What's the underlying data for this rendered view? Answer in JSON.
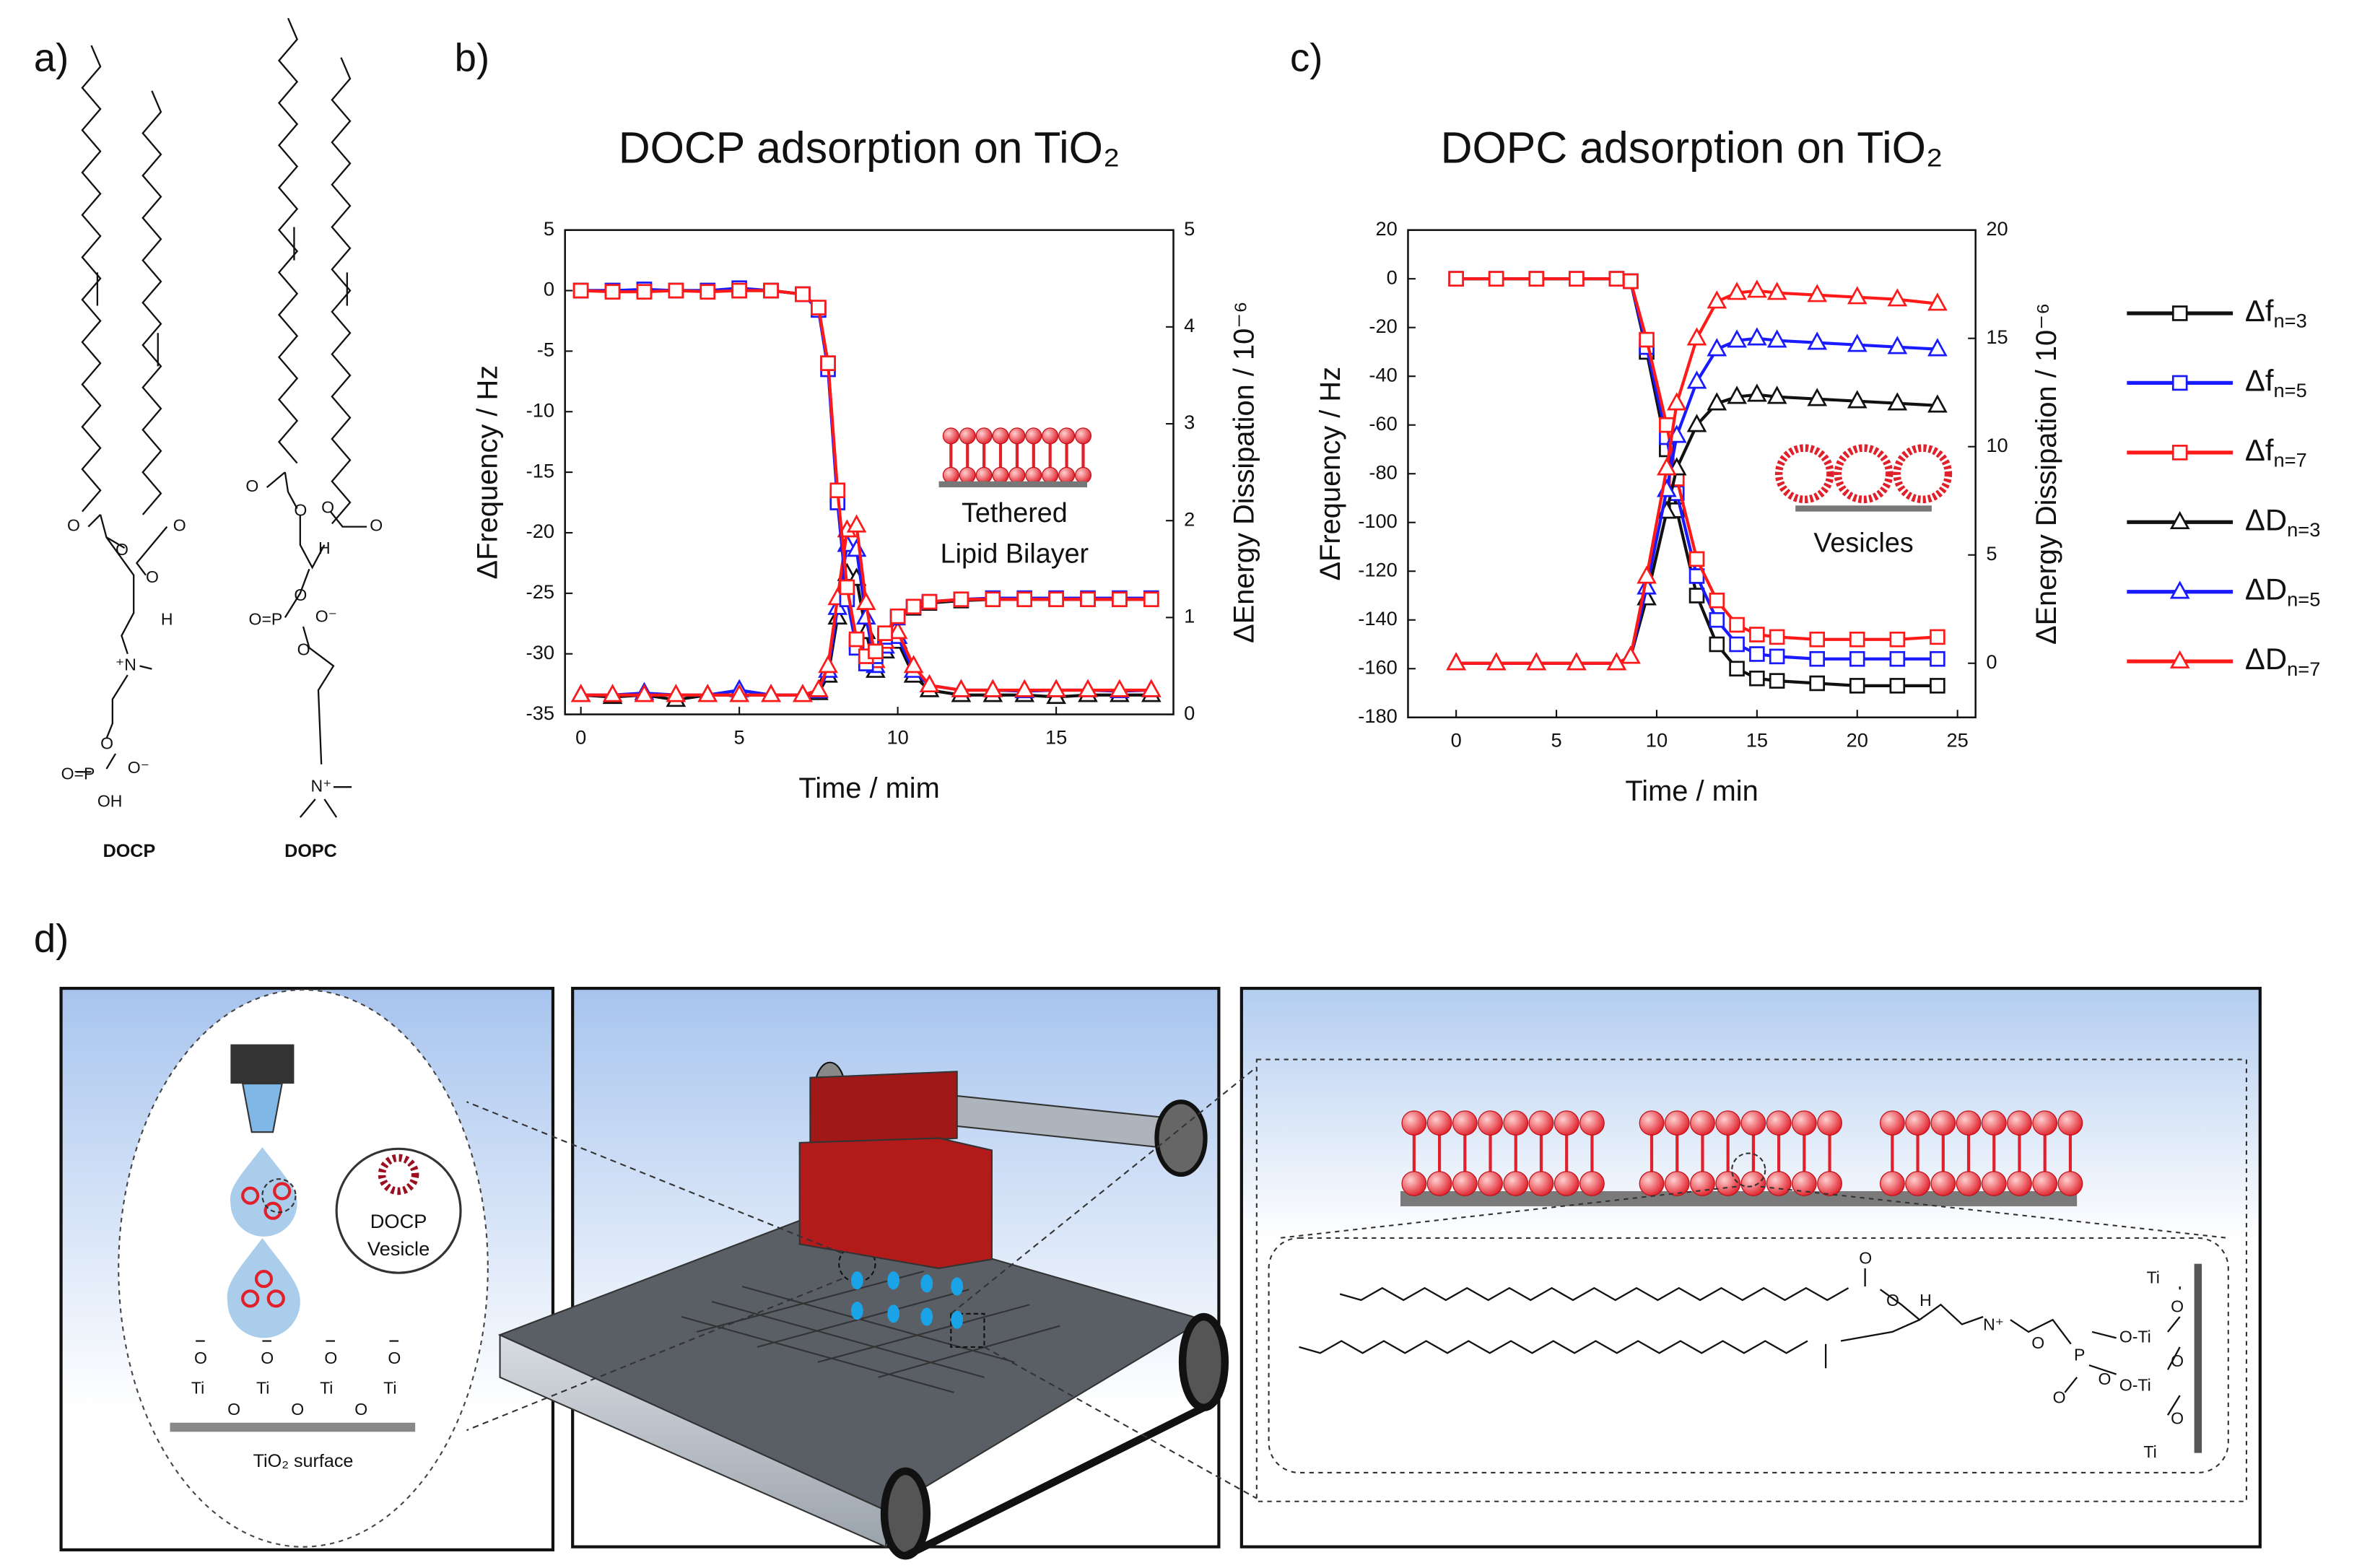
{
  "figure": {
    "panel_labels": [
      "a)",
      "b)",
      "c)",
      "d)"
    ],
    "molecule_a": {
      "atoms": [
        "O",
        "O",
        "O",
        "O",
        "H",
        "⁺N",
        "O",
        "O=P",
        "O⁻",
        "OH"
      ],
      "name": "DOCP"
    },
    "molecule_b": {
      "atoms": [
        "O",
        "O",
        "O",
        "O",
        "H",
        "O",
        "O=P",
        "O⁻",
        "O",
        "N⁺"
      ],
      "name": "DOPC"
    },
    "zoom_left": {
      "vesicle_label": [
        "DOCP",
        "Vesicle"
      ],
      "surface_atoms": [
        "O",
        "O",
        "O",
        "O",
        "Ti",
        "Ti",
        "Ti",
        "Ti",
        "O",
        "O",
        "O"
      ],
      "surface_label": "TiO₂ surface"
    },
    "zoom_right": {
      "atoms": [
        "O",
        "O",
        "H",
        "N⁺",
        "O",
        "P",
        "O",
        "O",
        "Ti",
        "O",
        "O-Ti",
        "O",
        "O-Ti",
        "O",
        "Ti"
      ]
    }
  },
  "chart_data": [
    {
      "type": "line",
      "title": "DOCP adsorption on TiO₂",
      "xlabel": "Time / mim",
      "ylabel": "ΔFrequency / Hz",
      "y2label": "ΔEnergy Dissipation / 10⁻⁶",
      "x": [
        0,
        1,
        2,
        3,
        4,
        5,
        6,
        7,
        7.5,
        7.8,
        8.1,
        8.4,
        8.7,
        9,
        9.3,
        9.6,
        10,
        10.5,
        11,
        12,
        13,
        14,
        15,
        16,
        17,
        18
      ],
      "xlim": [
        -0.5,
        18.7
      ],
      "xticks": [
        0,
        5,
        10,
        15
      ],
      "ylim": [
        -35,
        5
      ],
      "yticks": [
        -35,
        -30,
        -25,
        -20,
        -15,
        -10,
        -5,
        0,
        5
      ],
      "y2lim": [
        0,
        5
      ],
      "y2ticks": [
        0,
        1,
        2,
        3,
        4,
        5
      ],
      "annotation": [
        "Tethered",
        "Lipid Bilayer"
      ],
      "series": [
        {
          "color": "#111111",
          "marker": "triangle",
          "axis": "y2",
          "values": [
            0.2,
            0.18,
            0.2,
            0.15,
            0.2,
            0.2,
            0.2,
            0.2,
            0.22,
            0.4,
            1.0,
            1.45,
            1.4,
            0.85,
            0.45,
            0.65,
            0.75,
            0.4,
            0.25,
            0.2,
            0.2,
            0.2,
            0.18,
            0.2,
            0.2,
            0.2
          ]
        },
        {
          "color": "#1a1aff",
          "marker": "triangle",
          "axis": "y2",
          "values": [
            0.2,
            0.2,
            0.22,
            0.2,
            0.2,
            0.25,
            0.2,
            0.2,
            0.24,
            0.45,
            1.1,
            1.75,
            1.7,
            1.0,
            0.5,
            0.7,
            0.8,
            0.45,
            0.3,
            0.25,
            0.25,
            0.24,
            0.25,
            0.25,
            0.24,
            0.25
          ]
        },
        {
          "color": "#ff1a1a",
          "marker": "triangle",
          "axis": "y2",
          "values": [
            0.2,
            0.2,
            0.2,
            0.2,
            0.2,
            0.2,
            0.2,
            0.2,
            0.25,
            0.5,
            1.2,
            1.9,
            1.95,
            1.15,
            0.55,
            0.75,
            0.85,
            0.5,
            0.3,
            0.25,
            0.25,
            0.25,
            0.25,
            0.25,
            0.25,
            0.25
          ]
        },
        {
          "color": "#111111",
          "marker": "square",
          "values": [
            0,
            0,
            0,
            0,
            0,
            0,
            0,
            -0.3,
            -1.5,
            -6,
            -17,
            -25,
            -29,
            -30.5,
            -30,
            -28.5,
            -27,
            -26.2,
            -25.8,
            -25.6,
            -25.5,
            -25.5,
            -25.5,
            -25.5,
            -25.5,
            -25.5
          ]
        },
        {
          "color": "#1a1aff",
          "marker": "square",
          "values": [
            0,
            0,
            0.1,
            0,
            0,
            0.2,
            0,
            -0.3,
            -1.6,
            -6.5,
            -17.5,
            -25.5,
            -29.5,
            -30.8,
            -30.2,
            -28.6,
            -27,
            -26.1,
            -25.7,
            -25.5,
            -25.4,
            -25.4,
            -25.4,
            -25.4,
            -25.4,
            -25.4
          ]
        },
        {
          "color": "#ff1a1a",
          "marker": "square",
          "values": [
            0,
            -0.1,
            -0.1,
            0,
            -0.1,
            0,
            0,
            -0.3,
            -1.4,
            -6,
            -16.5,
            -24.5,
            -28.8,
            -30.2,
            -29.8,
            -28.3,
            -26.9,
            -26.1,
            -25.7,
            -25.5,
            -25.5,
            -25.5,
            -25.5,
            -25.5,
            -25.5,
            -25.5
          ]
        }
      ]
    },
    {
      "type": "line",
      "title": "DOPC adsorption on TiO₂",
      "xlabel": "Time / min",
      "ylabel": "ΔFrequency / Hz",
      "y2label": "ΔEnergy Dissipation / 10⁻⁶",
      "x": [
        0,
        2,
        4,
        6,
        8,
        8.7,
        9.5,
        10.5,
        11,
        12,
        13,
        14,
        15,
        16,
        18,
        20,
        22,
        24
      ],
      "xlim": [
        -2.4,
        25.9
      ],
      "xticks": [
        0,
        5,
        10,
        15,
        20,
        25
      ],
      "ylim": [
        -180,
        20
      ],
      "yticks": [
        -180,
        -160,
        -140,
        -120,
        -100,
        -80,
        -60,
        -40,
        -20,
        0,
        20
      ],
      "y2lim": [
        -2.5,
        20
      ],
      "y2ticks": [
        0,
        5,
        10,
        15,
        20
      ],
      "annotation": [
        "Vesicles"
      ],
      "legend": "right",
      "series": [
        {
          "name": "Δf",
          "subscript": "n=3",
          "color": "#111111",
          "marker": "square",
          "values": [
            0,
            0,
            0,
            0,
            0,
            -1,
            -30,
            -70,
            -95,
            -130,
            -150,
            -160,
            -164,
            -165,
            -166,
            -167,
            -167,
            -167
          ]
        },
        {
          "name": "Δf",
          "subscript": "n=5",
          "color": "#1a1aff",
          "marker": "square",
          "values": [
            0,
            0,
            0,
            0,
            0,
            -1,
            -28,
            -65,
            -88,
            -122,
            -140,
            -150,
            -154,
            -155,
            -156,
            -156,
            -156,
            -156
          ]
        },
        {
          "name": "Δf",
          "subscript": "n=7",
          "color": "#ff1a1a",
          "marker": "square",
          "values": [
            0,
            0,
            0,
            0,
            0,
            -1,
            -25,
            -60,
            -82,
            -115,
            -132,
            -142,
            -146,
            -147,
            -148,
            -148,
            -148,
            -147
          ]
        },
        {
          "name": "ΔD",
          "subscript": "n=3",
          "color": "#111111",
          "marker": "triangle",
          "axis": "y2",
          "values": [
            0,
            0,
            0,
            0,
            0,
            0.3,
            3,
            7,
            9,
            11,
            12,
            12.3,
            12.4,
            12.3,
            12.2,
            12.1,
            12,
            11.9
          ]
        },
        {
          "name": "ΔD",
          "subscript": "n=5",
          "color": "#1a1aff",
          "marker": "triangle",
          "axis": "y2",
          "values": [
            0,
            0,
            0,
            0,
            0,
            0.3,
            3.5,
            8,
            10.5,
            13,
            14.5,
            14.9,
            15,
            14.9,
            14.8,
            14.7,
            14.6,
            14.5
          ]
        },
        {
          "name": "ΔD",
          "subscript": "n=7",
          "color": "#ff1a1a",
          "marker": "triangle",
          "axis": "y2",
          "values": [
            0,
            0,
            0,
            0,
            0,
            0.3,
            4,
            9,
            12,
            15,
            16.7,
            17.1,
            17.2,
            17.1,
            17,
            16.9,
            16.8,
            16.6
          ]
        }
      ]
    }
  ]
}
